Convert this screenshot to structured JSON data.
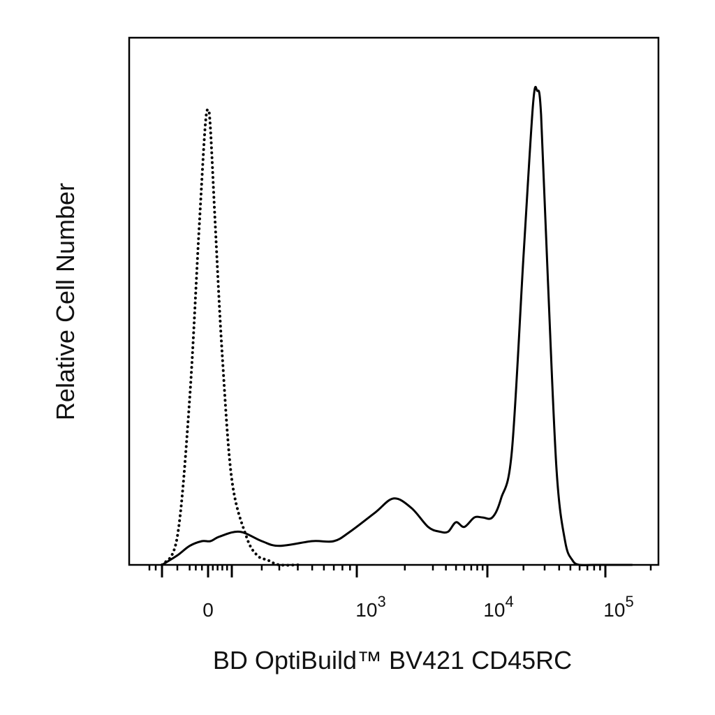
{
  "chart_data": {
    "type": "line",
    "title": "",
    "xlabel": "BD OptiBuild™ BV421 CD45RC",
    "ylabel": "Relative Cell Number",
    "xscale": "biexponential (logicle)",
    "x_tick_labels": [
      {
        "base": "0",
        "exp": ""
      },
      {
        "base": "10",
        "exp": "3"
      },
      {
        "base": "10",
        "exp": "4"
      },
      {
        "base": "10",
        "exp": "5"
      }
    ],
    "ylim": [
      0,
      100
    ],
    "grid": false,
    "legend": "none",
    "series": [
      {
        "style": "dotted",
        "x": [
          -150,
          -100,
          -60,
          -30,
          -10,
          0,
          10,
          30,
          60,
          100,
          140,
          180,
          230,
          300,
          400
        ],
        "y": [
          0,
          6,
          35,
          70,
          92,
          96,
          92,
          72,
          44,
          18,
          6,
          2,
          1,
          0,
          0
        ]
      },
      {
        "style": "solid",
        "x": [
          -150,
          -100,
          -60,
          -20,
          10,
          50,
          120,
          200,
          300,
          500,
          700,
          900,
          1300,
          1700,
          2200,
          2800,
          3500,
          4200,
          5000,
          6000,
          7500,
          9000,
          11000,
          13000,
          16000,
          20000,
          24000,
          26000,
          28000,
          32000,
          38000,
          45000,
          52000,
          60000,
          80000,
          150000
        ],
        "y": [
          0,
          2,
          4,
          5,
          5,
          6,
          7,
          5,
          4,
          5,
          5,
          7,
          11,
          14,
          12,
          8,
          7,
          7,
          9,
          8,
          10,
          10,
          10,
          14,
          24,
          65,
          97,
          100,
          95,
          60,
          20,
          5,
          1,
          0,
          0,
          0
        ]
      }
    ]
  }
}
